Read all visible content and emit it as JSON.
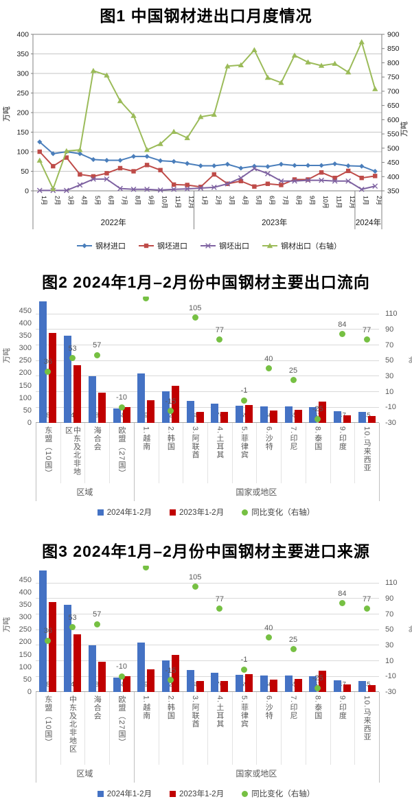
{
  "chart_data": [
    {
      "type": "line",
      "title": "图1 中国钢材进出口月度情况",
      "ylabel_left": "万吨",
      "ylabel_right": "万吨",
      "ylim_left": [
        0,
        400
      ],
      "ytick_left": 50,
      "ylim_right": [
        350,
        900
      ],
      "ytick_right": 50,
      "grid": true,
      "legend_position": "bottom",
      "x_year_groups": [
        {
          "label": "2022年",
          "count": 12
        },
        {
          "label": "2023年",
          "count": 12
        },
        {
          "label": "2024年",
          "count": 2
        }
      ],
      "x": [
        "1月",
        "2月",
        "3月",
        "4月",
        "5月",
        "6月",
        "7月",
        "8月",
        "9月",
        "10月",
        "11月",
        "12月",
        "1月",
        "2月",
        "3月",
        "4月",
        "5月",
        "6月",
        "7月",
        "8月",
        "9月",
        "10月",
        "11月",
        "12月",
        "1月",
        "2月"
      ],
      "series": [
        {
          "name": "钢材进口",
          "axis": "left",
          "color": "#4A7EBB",
          "marker": "diamond",
          "values": [
            125,
            95,
            100,
            95,
            80,
            78,
            78,
            88,
            88,
            77,
            75,
            70,
            64,
            64,
            68,
            58,
            63,
            62,
            68,
            65,
            65,
            65,
            69,
            64,
            63,
            50
          ]
        },
        {
          "name": "钢坯进口",
          "axis": "left",
          "color": "#BE4B48",
          "marker": "square",
          "values": [
            100,
            63,
            85,
            42,
            37,
            45,
            58,
            50,
            66,
            53,
            16,
            15,
            10,
            42,
            18,
            25,
            11,
            18,
            15,
            29,
            29,
            47,
            33,
            51,
            33,
            38
          ]
        },
        {
          "name": "钢坯出口",
          "axis": "left",
          "color": "#7E62A1",
          "marker": "x",
          "values": [
            1,
            1,
            1,
            15,
            30,
            30,
            6,
            4,
            4,
            2,
            4,
            5,
            7,
            9,
            18,
            33,
            57,
            44,
            25,
            25,
            27,
            27,
            25,
            25,
            4,
            12
          ]
        },
        {
          "name": "钢材出口（右轴）",
          "axis": "right",
          "color": "#9BBB59",
          "marker": "triangle",
          "values": [
            457,
            357,
            490,
            494,
            772,
            756,
            666,
            614,
            494,
            515,
            558,
            536,
            610,
            618,
            788,
            792,
            845,
            748,
            730,
            826,
            802,
            790,
            797,
            767,
            873,
            708
          ]
        }
      ]
    },
    {
      "type": "bar",
      "title": "图2 2024年1月–2月份中国钢材主要出口流向",
      "ylabel_left": "万吨",
      "ylabel_right": "%",
      "ylim_left": [
        0,
        490
      ],
      "yticks_left": [
        0,
        50,
        100,
        150,
        200,
        250,
        300,
        350,
        400,
        450
      ],
      "ylim_right": [
        -30,
        127
      ],
      "yticks_right": [
        -30,
        -10,
        10,
        30,
        50,
        70,
        90,
        110
      ],
      "grid": true,
      "legend_position": "bottom",
      "categories": [
        "东盟（10国）",
        "中东及北非地区",
        "海合会",
        "欧盟（27国）",
        "1.越南",
        "2.韩国",
        "3.阿联酋",
        "4.土耳其",
        "5.菲律宾",
        "6.沙特",
        "7.印尼",
        "8.泰国",
        "9.印度",
        "10.马来西亚"
      ],
      "category_groups": [
        {
          "label": "区域",
          "span": 4
        },
        {
          "label": "国家或地区",
          "span": 10
        }
      ],
      "series": [
        {
          "name": "2024年1-2月",
          "type": "bar",
          "color": "#4472C4",
          "values": [
            486,
            349,
            188,
            58,
            199,
            126,
            88,
            76,
            69,
            66,
            65,
            62,
            47,
            45
          ],
          "data_labels": [
            "486",
            "349",
            "188",
            "58",
            "199",
            "126",
            "88",
            "76",
            "69",
            "66",
            "65",
            "62",
            "47",
            "45"
          ]
        },
        {
          "name": "2023年1-2月",
          "type": "bar",
          "color": "#C00000",
          "values": [
            360,
            230,
            120,
            64,
            90,
            149,
            44,
            45,
            71,
            49,
            53,
            84,
            29,
            27
          ]
        },
        {
          "name": "同比变化（右轴）",
          "type": "point",
          "axis": "right",
          "color": "#76C043",
          "values": [
            36,
            53,
            57,
            -10,
            130,
            -15,
            105,
            77,
            -1,
            40,
            25,
            -25,
            84,
            77
          ],
          "data_labels": [
            "36",
            "53",
            "57",
            "-10",
            "",
            "-15",
            "105",
            "77",
            "-1",
            "40",
            "25",
            "-25",
            "84",
            "77"
          ],
          "clipped_points": [
            4
          ]
        }
      ]
    },
    {
      "type": "bar",
      "title": "图3 2024年1月–2月份中国钢材主要进口来源",
      "ylabel_left": "万吨",
      "ylabel_right": "%",
      "ylim_left": [
        0,
        490
      ],
      "yticks_left": [
        0,
        50,
        100,
        150,
        200,
        250,
        300,
        350,
        400,
        450
      ],
      "ylim_right": [
        -30,
        127
      ],
      "yticks_right": [
        -30,
        -10,
        10,
        30,
        50,
        70,
        90,
        110
      ],
      "grid": true,
      "legend_position": "bottom",
      "categories": [
        "东盟（10国）",
        "中东及北非地区",
        "海合会",
        "欧盟（27国）",
        "1.越南",
        "2.韩国",
        "3.阿联酋",
        "4.土耳其",
        "5.菲律宾",
        "6.沙特",
        "7.印尼",
        "8.泰国",
        "9.印度",
        "10.马来西亚"
      ],
      "category_groups": [
        {
          "label": "区域",
          "span": 4
        },
        {
          "label": "国家或地区",
          "span": 10
        }
      ],
      "series": [
        {
          "name": "2024年1-2月",
          "type": "bar",
          "color": "#4472C4",
          "values": [
            486,
            349,
            188,
            58,
            199,
            126,
            88,
            76,
            69,
            66,
            65,
            62,
            47,
            45
          ],
          "data_labels": [
            "486",
            "349",
            "188",
            "58",
            "199",
            "126",
            "88",
            "76",
            "69",
            "66",
            "65",
            "62",
            "47",
            "45"
          ]
        },
        {
          "name": "2023年1-2月",
          "type": "bar",
          "color": "#C00000",
          "values": [
            360,
            230,
            120,
            64,
            90,
            149,
            44,
            45,
            71,
            49,
            53,
            84,
            29,
            27
          ]
        },
        {
          "name": "同比变化（右轴）",
          "type": "point",
          "axis": "right",
          "color": "#76C043",
          "values": [
            36,
            53,
            57,
            -10,
            130,
            -15,
            105,
            77,
            -1,
            40,
            25,
            -25,
            84,
            77
          ],
          "data_labels": [
            "36",
            "53",
            "57",
            "-10",
            "",
            "-15",
            "105",
            "77",
            "-1",
            "40",
            "25",
            "-25",
            "84",
            "77"
          ],
          "clipped_points": [
            4
          ]
        }
      ]
    }
  ]
}
